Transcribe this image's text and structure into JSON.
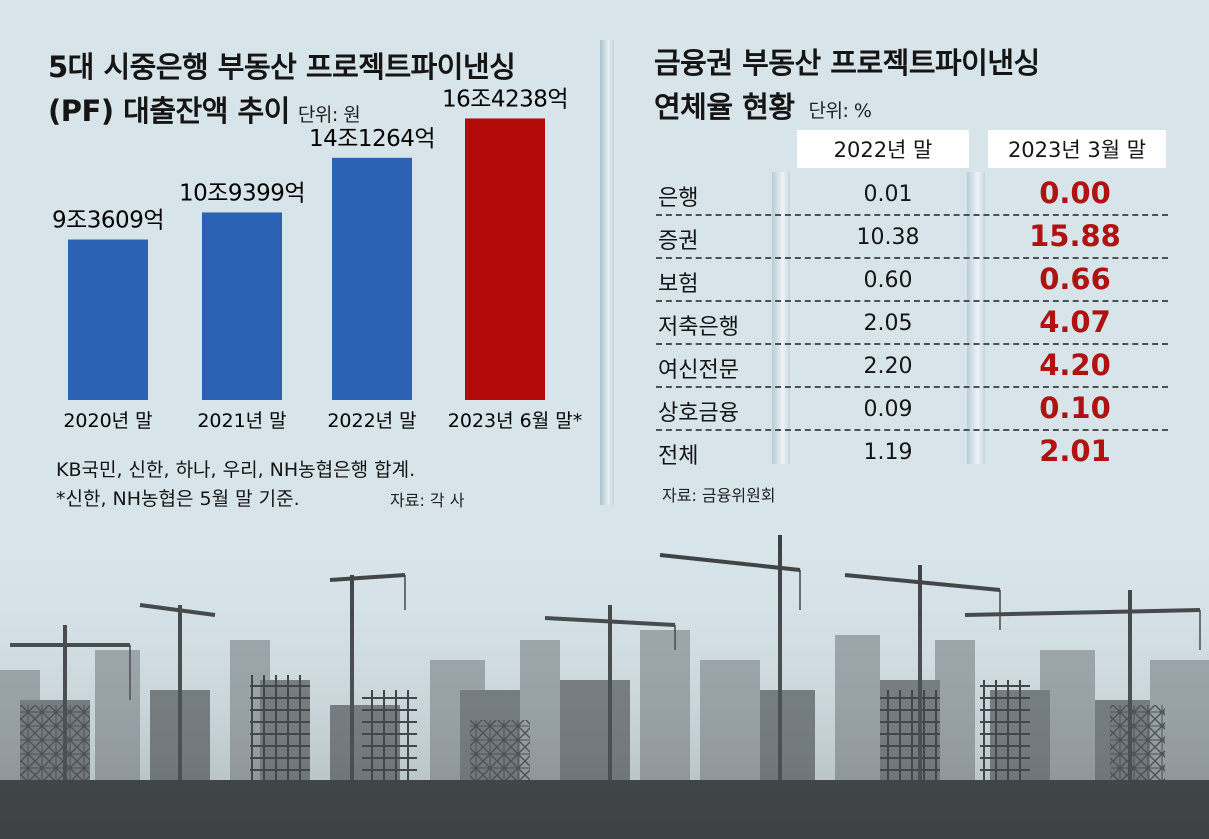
{
  "left_chart": {
    "title_line1": "5대 시중은행 부동산 프로젝트파이낸싱",
    "title_line2": "(PF) 대출잔액 추이",
    "unit": "단위: 원",
    "note_line1": "KB국민, 신한, 하나, 우리, NH농협은행 합계.",
    "note_line2": "*신한, NH농협은 5월 말 기준.",
    "source": "자료: 각 사"
  },
  "chart_data": {
    "type": "bar",
    "title": "5대 시중은행 부동산 프로젝트파이낸싱 (PF) 대출잔액 추이",
    "unit": "원",
    "categories": [
      "2020년 말",
      "2021년 말",
      "2022년 말",
      "2023년 6월 말*"
    ],
    "values": [
      93609,
      109399,
      141264,
      164238
    ],
    "value_unit": "억원",
    "data_labels": [
      "9조3609억",
      "10조9399억",
      "14조1264억",
      "16조4238억"
    ],
    "colors": [
      "#2c62b4",
      "#2c62b4",
      "#2c62b4",
      "#b30a0a"
    ],
    "ylim": [
      0,
      175000
    ],
    "xlabel": "",
    "ylabel": ""
  },
  "right_table": {
    "title_line1": "금융권 부동산 프로젝트파이낸싱",
    "title_line2": "연체율 현황",
    "unit": "단위: %",
    "columns": [
      "2022년 말",
      "2023년 3월 말"
    ],
    "rows": [
      {
        "label": "은행",
        "v2022": "0.01",
        "v2023": "0.00"
      },
      {
        "label": "증권",
        "v2022": "10.38",
        "v2023": "15.88"
      },
      {
        "label": "보험",
        "v2022": "0.60",
        "v2023": "0.66"
      },
      {
        "label": "저축은행",
        "v2022": "2.05",
        "v2023": "4.07"
      },
      {
        "label": "여신전문",
        "v2022": "2.20",
        "v2023": "4.20"
      },
      {
        "label": "상호금융",
        "v2022": "0.09",
        "v2023": "0.10"
      },
      {
        "label": "전체",
        "v2022": "1.19",
        "v2023": "2.01"
      }
    ],
    "source": "자료: 금융위원회"
  },
  "colors": {
    "background": "#d7e4e9",
    "bar_blue": "#2c62b4",
    "bar_red": "#b30a0a",
    "highlight_text": "#b01212"
  }
}
